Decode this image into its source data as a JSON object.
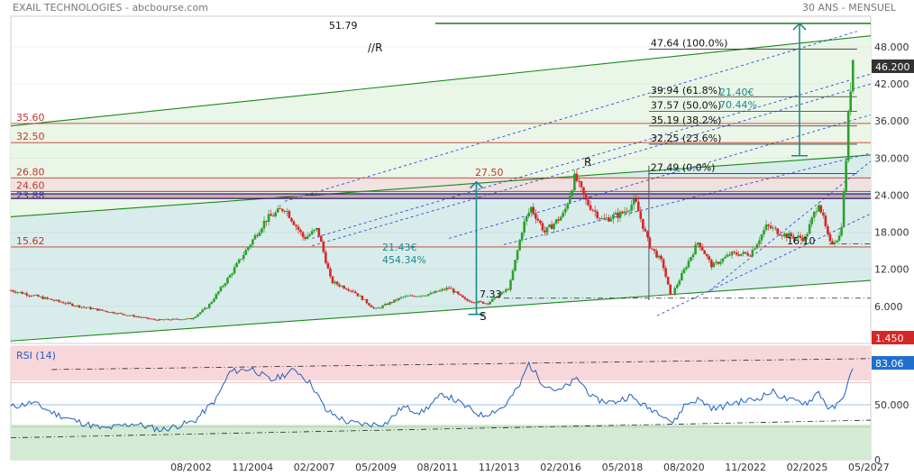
{
  "header": {
    "title": "EXAIL TECHNOLOGIES - abcbourse.com",
    "period": "30 ANS - MENSUEL"
  },
  "colors": {
    "up": "#2ca02c",
    "down": "#d62728",
    "level_line": "#c0392b",
    "fib_line": "#333333",
    "channel": "#1a8a1a",
    "trend_dashed": "#2e4bd8",
    "arrow": "#1a8a8a",
    "rsi_line": "#1f5fbf",
    "price_badge": "#333333",
    "low_badge": "#d62728",
    "rsi_badge": "#1f6fd0"
  },
  "chart_data": [
    {
      "type": "candlestick",
      "title": "",
      "y_axis": {
        "ticks": [
          "6.000",
          "12.000",
          "18.000",
          "24.000",
          "30.000",
          "36.000",
          "42.000",
          "48.000"
        ],
        "range": [
          0,
          51.79
        ]
      },
      "x_axis": {
        "ticks": [
          "08/2002",
          "11/2004",
          "02/2007",
          "05/2009",
          "08/2011",
          "11/2013",
          "02/2016",
          "05/2018",
          "08/2020",
          "11/2022",
          "02/2025",
          "05/2027"
        ]
      },
      "anchors": [
        {
          "t": 1996.0,
          "p": 8.6
        },
        {
          "t": 1998.5,
          "p": 6.0
        },
        {
          "t": 2000.0,
          "p": 4.8
        },
        {
          "t": 2001.3,
          "p": 3.8
        },
        {
          "t": 2002.6,
          "p": 4.0
        },
        {
          "t": 2003.2,
          "p": 6.0
        },
        {
          "t": 2004.0,
          "p": 11.0
        },
        {
          "t": 2005.3,
          "p": 20.0
        },
        {
          "t": 2006.0,
          "p": 22.0
        },
        {
          "t": 2006.7,
          "p": 17.0
        },
        {
          "t": 2007.2,
          "p": 18.5
        },
        {
          "t": 2007.7,
          "p": 10.0
        },
        {
          "t": 2008.5,
          "p": 8.5
        },
        {
          "t": 2009.3,
          "p": 5.5
        },
        {
          "t": 2010.3,
          "p": 7.5
        },
        {
          "t": 2011.3,
          "p": 8.0
        },
        {
          "t": 2012.0,
          "p": 9.0
        },
        {
          "t": 2012.6,
          "p": 7.0
        },
        {
          "t": 2013.4,
          "p": 6.5
        },
        {
          "t": 2014.2,
          "p": 9.0
        },
        {
          "t": 2014.7,
          "p": 19.0
        },
        {
          "t": 2015.0,
          "p": 22.0
        },
        {
          "t": 2015.5,
          "p": 18.0
        },
        {
          "t": 2016.2,
          "p": 21.0
        },
        {
          "t": 2016.6,
          "p": 27.0
        },
        {
          "t": 2017.0,
          "p": 23.0
        },
        {
          "t": 2017.6,
          "p": 20.0
        },
        {
          "t": 2018.3,
          "p": 21.0
        },
        {
          "t": 2018.8,
          "p": 23.0
        },
        {
          "t": 2019.3,
          "p": 16.0
        },
        {
          "t": 2019.8,
          "p": 13.0
        },
        {
          "t": 2020.1,
          "p": 7.5
        },
        {
          "t": 2020.6,
          "p": 12.0
        },
        {
          "t": 2021.1,
          "p": 16.5
        },
        {
          "t": 2021.6,
          "p": 12.5
        },
        {
          "t": 2022.3,
          "p": 14.5
        },
        {
          "t": 2023.0,
          "p": 14.5
        },
        {
          "t": 2023.6,
          "p": 19.0
        },
        {
          "t": 2024.3,
          "p": 17.5
        },
        {
          "t": 2025.0,
          "p": 17.0
        },
        {
          "t": 2025.5,
          "p": 23.0
        },
        {
          "t": 2025.9,
          "p": 16.1
        },
        {
          "t": 2026.3,
          "p": 17.5
        },
        {
          "t": 2026.45,
          "p": 26.0
        },
        {
          "t": 2026.6,
          "p": 38.0
        },
        {
          "t": 2026.75,
          "p": 46.2
        }
      ],
      "levels": [
        {
          "value": 35.6,
          "label": "35.60"
        },
        {
          "value": 32.5,
          "label": "32.50"
        },
        {
          "value": 26.8,
          "label": "26.80"
        },
        {
          "value": 24.6,
          "label": "24.60"
        },
        {
          "value": 23.88,
          "label": "23.88"
        },
        {
          "value": 15.62,
          "label": "15.62"
        }
      ],
      "purple_lines": [
        24.2,
        23.5
      ],
      "fibonacci": [
        {
          "value": 47.64,
          "label": "47.64  (100.0%)"
        },
        {
          "value": 39.94,
          "label": "39.94  (61.8%)"
        },
        {
          "value": 37.57,
          "label": "37.57  (50.0%)"
        },
        {
          "value": 35.19,
          "label": "35.19  (38.2%)"
        },
        {
          "value": 32.25,
          "label": "32.25  (23.6%)"
        },
        {
          "value": 27.49,
          "label": "27.49  (0.0%)"
        }
      ],
      "annotations": {
        "top_line": "51.79",
        "marker_27_50": "27.50",
        "marker_7_33": "7.33",
        "marker_16_10": "16.10",
        "resistance_label": "R",
        "parallel_resistance_label": "//R",
        "support_label": "S",
        "gain_1_amount": "21.43€",
        "gain_1_pct": "454.34%",
        "gain_2_amount": "21.40€",
        "gain_2_pct": "70.44%"
      },
      "badges": {
        "last_price": "46.200",
        "low": "1.450"
      }
    },
    {
      "type": "line",
      "title": "RSI (14)",
      "y_axis": {
        "ticks": [
          "0",
          "50.000"
        ],
        "range": [
          0,
          100
        ]
      },
      "last_value": "83.06",
      "anchors": [
        {
          "t": 1996.0,
          "v": 48
        },
        {
          "t": 1996.8,
          "v": 52
        },
        {
          "t": 1997.6,
          "v": 42
        },
        {
          "t": 1998.4,
          "v": 35
        },
        {
          "t": 1999.4,
          "v": 28
        },
        {
          "t": 2000.5,
          "v": 33
        },
        {
          "t": 2001.5,
          "v": 27
        },
        {
          "t": 2002.7,
          "v": 35
        },
        {
          "t": 2003.5,
          "v": 55
        },
        {
          "t": 2004.0,
          "v": 80
        },
        {
          "t": 2004.8,
          "v": 83
        },
        {
          "t": 2005.5,
          "v": 72
        },
        {
          "t": 2006.4,
          "v": 82
        },
        {
          "t": 2007.0,
          "v": 68
        },
        {
          "t": 2007.5,
          "v": 45
        },
        {
          "t": 2008.3,
          "v": 34
        },
        {
          "t": 2009.0,
          "v": 32
        },
        {
          "t": 2009.7,
          "v": 33
        },
        {
          "t": 2010.3,
          "v": 48
        },
        {
          "t": 2011.0,
          "v": 43
        },
        {
          "t": 2011.8,
          "v": 60
        },
        {
          "t": 2012.5,
          "v": 50
        },
        {
          "t": 2013.2,
          "v": 40
        },
        {
          "t": 2014.0,
          "v": 48
        },
        {
          "t": 2014.6,
          "v": 68
        },
        {
          "t": 2014.9,
          "v": 88
        },
        {
          "t": 2015.4,
          "v": 70
        },
        {
          "t": 2016.0,
          "v": 62
        },
        {
          "t": 2016.7,
          "v": 74
        },
        {
          "t": 2017.3,
          "v": 55
        },
        {
          "t": 2018.0,
          "v": 52
        },
        {
          "t": 2018.6,
          "v": 58
        },
        {
          "t": 2019.2,
          "v": 48
        },
        {
          "t": 2019.8,
          "v": 42
        },
        {
          "t": 2020.2,
          "v": 33
        },
        {
          "t": 2020.6,
          "v": 50
        },
        {
          "t": 2021.1,
          "v": 55
        },
        {
          "t": 2021.7,
          "v": 46
        },
        {
          "t": 2022.4,
          "v": 52
        },
        {
          "t": 2023.2,
          "v": 55
        },
        {
          "t": 2023.8,
          "v": 62
        },
        {
          "t": 2024.4,
          "v": 54
        },
        {
          "t": 2025.1,
          "v": 52
        },
        {
          "t": 2025.5,
          "v": 62
        },
        {
          "t": 2025.9,
          "v": 45
        },
        {
          "t": 2026.3,
          "v": 52
        },
        {
          "t": 2026.6,
          "v": 72
        },
        {
          "t": 2026.75,
          "v": 83.06
        }
      ]
    }
  ]
}
